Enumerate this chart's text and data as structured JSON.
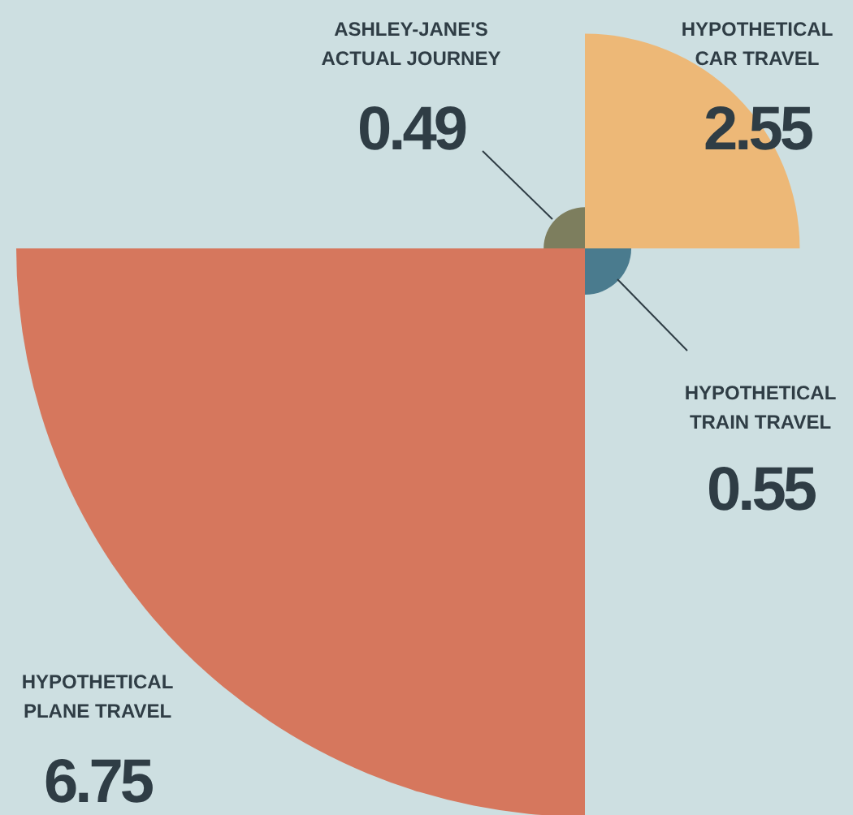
{
  "chart_data": {
    "type": "other",
    "categories": [
      "ASHLEY-JANE'S\nACTUAL JOURNEY",
      "HYPOTHETICAL\nCAR TRAVEL",
      "HYPOTHETICAL\nTRAIN TRAVEL",
      "HYPOTHETICAL\nPLANE TRAVEL"
    ],
    "values": [
      0.49,
      2.55,
      0.55,
      6.75
    ],
    "colors": [
      "#7d7e5e",
      "#edb877",
      "#4a7b8e",
      "#d6775d"
    ],
    "data_labels": true
  }
}
